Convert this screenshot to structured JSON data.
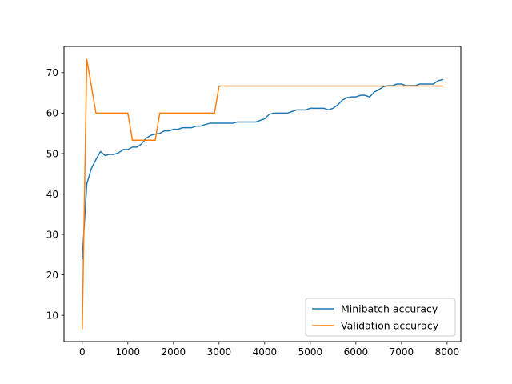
{
  "chart_data": {
    "type": "line",
    "title": "",
    "xlabel": "",
    "ylabel": "",
    "xlim": [
      -400,
      8300
    ],
    "ylim": [
      3.5,
      76.5
    ],
    "xticks": [
      0,
      1000,
      2000,
      3000,
      4000,
      5000,
      6000,
      7000,
      8000
    ],
    "yticks": [
      10,
      20,
      30,
      40,
      50,
      60,
      70
    ],
    "grid": false,
    "legend_position": "lower-right",
    "series": [
      {
        "name": "Minibatch accuracy",
        "color": "#1f77b4",
        "x": [
          0,
          100,
          200,
          300,
          400,
          500,
          600,
          700,
          800,
          900,
          1000,
          1100,
          1200,
          1300,
          1400,
          1500,
          1600,
          1700,
          1800,
          1900,
          2000,
          2100,
          2200,
          2300,
          2400,
          2500,
          2600,
          2700,
          2800,
          2900,
          3000,
          3100,
          3200,
          3300,
          3400,
          3500,
          3600,
          3700,
          3800,
          3900,
          4000,
          4100,
          4200,
          4300,
          4400,
          4500,
          4600,
          4700,
          4800,
          4900,
          5000,
          5100,
          5200,
          5300,
          5400,
          5500,
          5600,
          5700,
          5800,
          5900,
          6000,
          6100,
          6200,
          6300,
          6400,
          6500,
          6600,
          6700,
          6800,
          6900,
          7000,
          7100,
          7200,
          7300,
          7400,
          7500,
          7600,
          7700,
          7800,
          7900
        ],
        "y": [
          24,
          42.5,
          46.3,
          48.5,
          50.5,
          49.5,
          49.8,
          49.8,
          50.2,
          51,
          51,
          51.6,
          51.6,
          52.4,
          53.8,
          54.5,
          54.8,
          55,
          55.6,
          55.6,
          56,
          56,
          56.4,
          56.4,
          56.4,
          56.8,
          56.8,
          57.2,
          57.5,
          57.5,
          57.5,
          57.5,
          57.5,
          57.5,
          57.8,
          57.8,
          57.8,
          57.8,
          57.8,
          58.2,
          58.6,
          59.7,
          60,
          60,
          60,
          60,
          60.4,
          60.8,
          60.8,
          60.8,
          61.2,
          61.2,
          61.2,
          61.2,
          60.8,
          61.2,
          62,
          63.2,
          63.8,
          64,
          64,
          64.4,
          64.4,
          64,
          65.2,
          65.8,
          66.5,
          66.8,
          66.8,
          67.2,
          67.2,
          66.8,
          66.8,
          66.8,
          67.2,
          67.2,
          67.2,
          67.2,
          68,
          68.3
        ]
      },
      {
        "name": "Validation accuracy",
        "color": "#ff7f0e",
        "x": [
          0,
          100,
          300,
          1000,
          1100,
          1300,
          1600,
          1700,
          2900,
          3000,
          7900
        ],
        "y": [
          6.7,
          73.3,
          60,
          60,
          53.3,
          53.3,
          53.3,
          60,
          60,
          66.7,
          66.7
        ]
      }
    ]
  }
}
